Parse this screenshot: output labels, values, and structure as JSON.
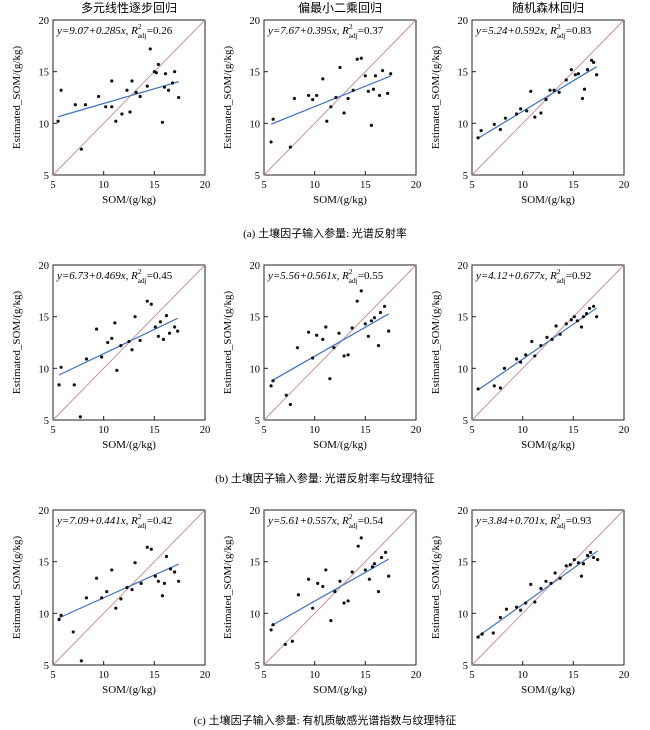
{
  "figure": {
    "row_captions": [
      "(a) 土壤因子输入参量: 光谱反射率",
      "(b) 土壤因子输入参量: 光谱反射率与纹理特征",
      "(c) 土壤因子输入参量: 有机质敏感光谱指数与纹理特征"
    ],
    "column_titles": [
      "多元线性逐步回归",
      "偏最小二乘回归",
      "随机森林回归"
    ],
    "colors": {
      "fit_line": "#3a6fc4",
      "one_to_one_line": "#c78a93",
      "points": "#111111",
      "axes": "#222222"
    }
  },
  "chart_data": [
    {
      "type": "scatter",
      "row": 0,
      "col": 0,
      "title": "多元线性逐步回归",
      "xlabel": "SOM/(g/kg)",
      "ylabel": "Estimated_SOM/(g/kg)",
      "xlim": [
        5,
        20
      ],
      "ylim": [
        5,
        20
      ],
      "xticks": [
        5,
        10,
        15,
        20
      ],
      "yticks": [
        5,
        10,
        15,
        20
      ],
      "fit": {
        "intercept": 9.07,
        "slope": 0.285,
        "r2_adj": 0.26,
        "eq_text": "y=9.07+0.285x, R",
        "r2_text": "=0.26"
      },
      "points": [
        [
          5.5,
          10.2
        ],
        [
          5.8,
          13.2
        ],
        [
          7.2,
          11.8
        ],
        [
          7.8,
          7.5
        ],
        [
          8.2,
          11.8
        ],
        [
          9.5,
          12.6
        ],
        [
          10.2,
          11.6
        ],
        [
          10.8,
          14.1
        ],
        [
          10.8,
          11.6
        ],
        [
          11.2,
          10.2
        ],
        [
          11.8,
          10.9
        ],
        [
          12.3,
          13.2
        ],
        [
          12.6,
          11.1
        ],
        [
          12.8,
          14.1
        ],
        [
          13.2,
          13.0
        ],
        [
          13.6,
          12.6
        ],
        [
          14.3,
          13.6
        ],
        [
          14.6,
          17.2
        ],
        [
          15.0,
          15.0
        ],
        [
          15.2,
          14.9
        ],
        [
          15.4,
          15.7
        ],
        [
          15.8,
          10.1
        ],
        [
          16.0,
          13.5
        ],
        [
          16.1,
          14.8
        ],
        [
          16.4,
          13.2
        ],
        [
          16.8,
          13.9
        ],
        [
          17.0,
          15.0
        ],
        [
          17.4,
          12.5
        ]
      ]
    },
    {
      "type": "scatter",
      "row": 0,
      "col": 1,
      "title": "偏最小二乘回归",
      "xlabel": "SOM/(g/kg)",
      "ylabel": "Estimated_SOM/(g/kg)",
      "xlim": [
        5,
        20
      ],
      "ylim": [
        5,
        20
      ],
      "xticks": [
        5,
        10,
        15,
        20
      ],
      "yticks": [
        5,
        10,
        15,
        20
      ],
      "fit": {
        "intercept": 7.67,
        "slope": 0.395,
        "r2_adj": 0.37,
        "eq_text": "y=7.67+0.395x, R",
        "r2_text": "=0.37"
      },
      "points": [
        [
          5.7,
          8.2
        ],
        [
          5.9,
          10.4
        ],
        [
          7.6,
          7.7
        ],
        [
          8.0,
          12.4
        ],
        [
          9.4,
          12.7
        ],
        [
          9.8,
          12.3
        ],
        [
          10.2,
          12.7
        ],
        [
          10.8,
          14.3
        ],
        [
          11.2,
          10.2
        ],
        [
          11.6,
          11.6
        ],
        [
          12.1,
          12.5
        ],
        [
          12.5,
          15.4
        ],
        [
          12.9,
          11.0
        ],
        [
          13.3,
          12.4
        ],
        [
          13.8,
          13.2
        ],
        [
          14.2,
          16.2
        ],
        [
          14.6,
          16.3
        ],
        [
          15.0,
          14.6
        ],
        [
          15.3,
          13.1
        ],
        [
          15.6,
          9.8
        ],
        [
          15.8,
          13.3
        ],
        [
          16.0,
          14.6
        ],
        [
          16.4,
          12.7
        ],
        [
          16.7,
          15.1
        ],
        [
          17.2,
          12.9
        ],
        [
          17.5,
          14.8
        ]
      ]
    },
    {
      "type": "scatter",
      "row": 0,
      "col": 2,
      "title": "随机森林回归",
      "xlabel": "SOM/(g/kg)",
      "ylabel": "Estimated_SOM/(g/kg)",
      "xlim": [
        5,
        20
      ],
      "ylim": [
        5,
        20
      ],
      "xticks": [
        5,
        10,
        15,
        20
      ],
      "yticks": [
        5,
        10,
        15,
        20
      ],
      "fit": {
        "intercept": 5.24,
        "slope": 0.592,
        "r2_adj": 0.83,
        "eq_text": "y=5.24+0.592x, R",
        "r2_text": "=0.83"
      },
      "points": [
        [
          5.6,
          8.6
        ],
        [
          5.9,
          9.3
        ],
        [
          7.2,
          9.9
        ],
        [
          7.8,
          9.4
        ],
        [
          8.3,
          10.5
        ],
        [
          9.4,
          10.9
        ],
        [
          9.8,
          11.4
        ],
        [
          10.4,
          11.2
        ],
        [
          10.8,
          13.1
        ],
        [
          11.2,
          10.6
        ],
        [
          11.8,
          11.0
        ],
        [
          12.3,
          12.3
        ],
        [
          12.7,
          13.2
        ],
        [
          13.1,
          13.2
        ],
        [
          13.6,
          13.0
        ],
        [
          14.3,
          14.2
        ],
        [
          14.8,
          15.2
        ],
        [
          15.2,
          14.7
        ],
        [
          15.5,
          14.8
        ],
        [
          15.9,
          12.4
        ],
        [
          16.1,
          13.3
        ],
        [
          16.4,
          15.2
        ],
        [
          16.8,
          16.1
        ],
        [
          17.0,
          15.9
        ],
        [
          17.3,
          14.7
        ]
      ]
    },
    {
      "type": "scatter",
      "row": 1,
      "col": 0,
      "title": "多元线性逐步回归",
      "xlabel": "SOM/(g/kg)",
      "ylabel": "Estimated_SOM/(g/kg)",
      "xlim": [
        5,
        20
      ],
      "ylim": [
        5,
        20
      ],
      "xticks": [
        5,
        10,
        15,
        20
      ],
      "yticks": [
        5,
        10,
        15,
        20
      ],
      "fit": {
        "intercept": 6.73,
        "slope": 0.469,
        "r2_adj": 0.45,
        "eq_text": "y=6.73+0.469x, R",
        "r2_text": "=0.45"
      },
      "points": [
        [
          5.6,
          8.4
        ],
        [
          5.8,
          10.1
        ],
        [
          7.1,
          8.4
        ],
        [
          7.7,
          5.3
        ],
        [
          8.3,
          10.9
        ],
        [
          9.3,
          13.8
        ],
        [
          9.8,
          11.1
        ],
        [
          10.4,
          12.5
        ],
        [
          10.8,
          12.9
        ],
        [
          11.1,
          14.4
        ],
        [
          11.3,
          9.8
        ],
        [
          11.7,
          12.2
        ],
        [
          12.5,
          12.6
        ],
        [
          12.8,
          11.8
        ],
        [
          13.1,
          15.0
        ],
        [
          13.6,
          12.7
        ],
        [
          14.3,
          16.5
        ],
        [
          14.7,
          16.2
        ],
        [
          15.1,
          14.0
        ],
        [
          15.4,
          13.1
        ],
        [
          15.6,
          14.5
        ],
        [
          15.9,
          12.8
        ],
        [
          16.2,
          15.1
        ],
        [
          16.5,
          13.4
        ],
        [
          17.0,
          14.0
        ],
        [
          17.3,
          13.6
        ]
      ]
    },
    {
      "type": "scatter",
      "row": 1,
      "col": 1,
      "title": "偏最小二乘回归",
      "xlabel": "SOM/(g/kg)",
      "ylabel": "Estimated_SOM/(g/kg)",
      "xlim": [
        5,
        20
      ],
      "ylim": [
        5,
        20
      ],
      "xticks": [
        5,
        10,
        15,
        20
      ],
      "yticks": [
        5,
        10,
        15,
        20
      ],
      "fit": {
        "intercept": 5.56,
        "slope": 0.561,
        "r2_adj": 0.55,
        "eq_text": "y=5.56+0.561x, R",
        "r2_text": "=0.55"
      },
      "points": [
        [
          5.7,
          8.3
        ],
        [
          5.9,
          8.8
        ],
        [
          7.2,
          7.4
        ],
        [
          7.6,
          6.5
        ],
        [
          8.3,
          12.0
        ],
        [
          9.4,
          13.5
        ],
        [
          9.8,
          11.0
        ],
        [
          10.2,
          13.2
        ],
        [
          10.8,
          12.8
        ],
        [
          11.1,
          14.0
        ],
        [
          11.5,
          9.0
        ],
        [
          11.9,
          12.0
        ],
        [
          12.4,
          13.4
        ],
        [
          12.9,
          11.2
        ],
        [
          13.3,
          11.3
        ],
        [
          13.7,
          13.9
        ],
        [
          14.2,
          16.5
        ],
        [
          14.6,
          17.5
        ],
        [
          15.0,
          14.3
        ],
        [
          15.3,
          13.1
        ],
        [
          15.6,
          14.6
        ],
        [
          15.9,
          14.9
        ],
        [
          16.3,
          12.2
        ],
        [
          16.5,
          15.4
        ],
        [
          16.9,
          16.0
        ],
        [
          17.3,
          13.6
        ]
      ]
    },
    {
      "type": "scatter",
      "row": 1,
      "col": 2,
      "title": "随机森林回归",
      "xlabel": "SOM/(g/kg)",
      "ylabel": "Estimated_SOM/(g/kg)",
      "xlim": [
        5,
        20
      ],
      "ylim": [
        5,
        20
      ],
      "xticks": [
        5,
        10,
        15,
        20
      ],
      "yticks": [
        5,
        10,
        15,
        20
      ],
      "fit": {
        "intercept": 4.12,
        "slope": 0.677,
        "r2_adj": 0.92,
        "eq_text": "y=4.12+0.677x, R",
        "r2_text": "=0.92"
      },
      "points": [
        [
          5.6,
          8.0
        ],
        [
          7.2,
          8.3
        ],
        [
          7.8,
          8.1
        ],
        [
          8.2,
          10.0
        ],
        [
          9.4,
          10.9
        ],
        [
          9.8,
          10.6
        ],
        [
          10.3,
          11.3
        ],
        [
          10.9,
          12.6
        ],
        [
          11.2,
          11.2
        ],
        [
          11.8,
          12.2
        ],
        [
          12.4,
          13.0
        ],
        [
          12.9,
          12.8
        ],
        [
          13.3,
          14.1
        ],
        [
          13.7,
          13.3
        ],
        [
          14.3,
          14.3
        ],
        [
          14.8,
          14.7
        ],
        [
          15.1,
          15.0
        ],
        [
          15.4,
          14.6
        ],
        [
          15.8,
          14.0
        ],
        [
          16.0,
          15.0
        ],
        [
          16.3,
          15.3
        ],
        [
          16.6,
          15.8
        ],
        [
          17.0,
          16.0
        ],
        [
          17.3,
          15.0
        ]
      ]
    },
    {
      "type": "scatter",
      "row": 2,
      "col": 0,
      "title": "多元线性逐步回归",
      "xlabel": "SOM/(g/kg)",
      "ylabel": "Estimated_SOM/(g/kg)",
      "xlim": [
        5,
        20
      ],
      "ylim": [
        5,
        20
      ],
      "xticks": [
        5,
        10,
        15,
        20
      ],
      "yticks": [
        5,
        10,
        15,
        20
      ],
      "fit": {
        "intercept": 7.09,
        "slope": 0.441,
        "r2_adj": 0.42,
        "eq_text": "y=7.09+0.441x, R",
        "r2_text": "=0.42"
      },
      "points": [
        [
          5.6,
          9.4
        ],
        [
          5.8,
          9.8
        ],
        [
          7.0,
          8.2
        ],
        [
          7.8,
          5.4
        ],
        [
          8.3,
          11.5
        ],
        [
          9.3,
          13.4
        ],
        [
          9.8,
          11.5
        ],
        [
          10.3,
          12.1
        ],
        [
          10.8,
          14.2
        ],
        [
          11.2,
          10.5
        ],
        [
          11.7,
          11.4
        ],
        [
          12.3,
          12.5
        ],
        [
          12.8,
          12.3
        ],
        [
          13.1,
          14.9
        ],
        [
          13.7,
          12.9
        ],
        [
          14.3,
          16.4
        ],
        [
          14.7,
          16.2
        ],
        [
          15.1,
          13.6
        ],
        [
          15.4,
          13.1
        ],
        [
          15.8,
          11.7
        ],
        [
          16.0,
          12.9
        ],
        [
          16.2,
          15.5
        ],
        [
          16.6,
          14.3
        ],
        [
          17.0,
          14.0
        ],
        [
          17.4,
          13.1
        ]
      ]
    },
    {
      "type": "scatter",
      "row": 2,
      "col": 1,
      "title": "偏最小二乘回归",
      "xlabel": "SOM/(g/kg)",
      "ylabel": "Estimated_SOM/(g/kg)",
      "xlim": [
        5,
        20
      ],
      "ylim": [
        5,
        20
      ],
      "xticks": [
        5,
        10,
        15,
        20
      ],
      "yticks": [
        5,
        10,
        15,
        20
      ],
      "fit": {
        "intercept": 5.61,
        "slope": 0.557,
        "r2_adj": 0.54,
        "eq_text": "y=5.61+0.557x, R",
        "r2_text": "=0.54"
      },
      "points": [
        [
          5.7,
          8.4
        ],
        [
          5.9,
          8.9
        ],
        [
          7.1,
          7.0
        ],
        [
          7.8,
          7.3
        ],
        [
          8.4,
          11.8
        ],
        [
          9.4,
          13.3
        ],
        [
          9.8,
          10.5
        ],
        [
          10.3,
          12.9
        ],
        [
          10.8,
          12.6
        ],
        [
          11.1,
          14.2
        ],
        [
          11.6,
          9.3
        ],
        [
          12.0,
          12.1
        ],
        [
          12.5,
          13.1
        ],
        [
          12.9,
          11.0
        ],
        [
          13.3,
          11.2
        ],
        [
          13.7,
          14.0
        ],
        [
          14.3,
          16.5
        ],
        [
          14.6,
          17.3
        ],
        [
          15.0,
          14.2
        ],
        [
          15.4,
          13.3
        ],
        [
          15.7,
          14.5
        ],
        [
          15.9,
          14.8
        ],
        [
          16.3,
          12.1
        ],
        [
          16.6,
          15.4
        ],
        [
          17.0,
          15.9
        ],
        [
          17.3,
          13.6
        ]
      ]
    },
    {
      "type": "scatter",
      "row": 2,
      "col": 2,
      "title": "随机森林回归",
      "xlabel": "SOM/(g/kg)",
      "ylabel": "Estimated_SOM/(g/kg)",
      "xlim": [
        5,
        20
      ],
      "ylim": [
        5,
        20
      ],
      "xticks": [
        5,
        10,
        15,
        20
      ],
      "yticks": [
        5,
        10,
        15,
        20
      ],
      "fit": {
        "intercept": 3.84,
        "slope": 0.701,
        "r2_adj": 0.93,
        "eq_text": "y=3.84+0.701x, R",
        "r2_text": "=0.93"
      },
      "points": [
        [
          5.6,
          7.7
        ],
        [
          6.0,
          8.0
        ],
        [
          7.1,
          8.1
        ],
        [
          7.8,
          9.6
        ],
        [
          8.4,
          10.4
        ],
        [
          9.4,
          10.6
        ],
        [
          9.8,
          10.3
        ],
        [
          10.3,
          11.0
        ],
        [
          10.8,
          12.8
        ],
        [
          11.2,
          11.1
        ],
        [
          11.8,
          12.4
        ],
        [
          12.3,
          13.1
        ],
        [
          12.8,
          12.9
        ],
        [
          13.2,
          13.9
        ],
        [
          13.7,
          13.4
        ],
        [
          14.3,
          14.6
        ],
        [
          14.7,
          14.7
        ],
        [
          15.1,
          15.2
        ],
        [
          15.5,
          14.9
        ],
        [
          15.8,
          13.6
        ],
        [
          16.0,
          14.8
        ],
        [
          16.4,
          15.6
        ],
        [
          16.7,
          15.9
        ],
        [
          17.0,
          15.4
        ],
        [
          17.4,
          15.2
        ]
      ]
    }
  ]
}
